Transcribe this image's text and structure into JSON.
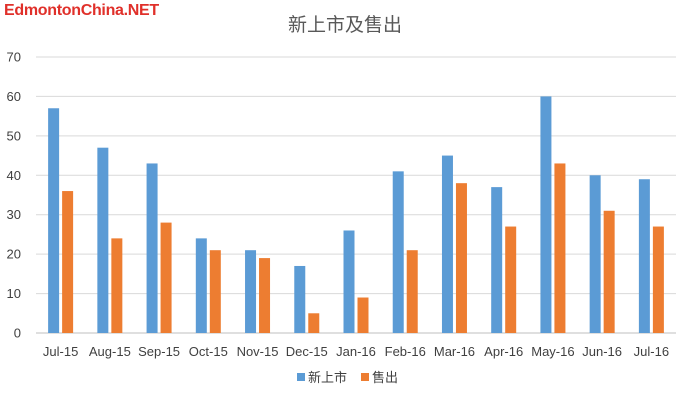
{
  "watermark": "EdmontonChina.NET",
  "chart_data": {
    "type": "bar",
    "title": "新上市及售出",
    "xlabel": "",
    "ylabel": "",
    "categories": [
      "Jul-15",
      "Aug-15",
      "Sep-15",
      "Oct-15",
      "Nov-15",
      "Dec-15",
      "Jan-16",
      "Feb-16",
      "Mar-16",
      "Apr-16",
      "May-16",
      "Jun-16",
      "Jul-16"
    ],
    "series": [
      {
        "name": "新上市",
        "color": "#5b9bd5",
        "values": [
          57,
          47,
          43,
          24,
          21,
          17,
          26,
          41,
          45,
          37,
          60,
          40,
          39
        ]
      },
      {
        "name": "售出",
        "color": "#ed7d31",
        "values": [
          36,
          24,
          28,
          21,
          19,
          5,
          9,
          21,
          38,
          27,
          43,
          31,
          27
        ]
      }
    ],
    "ylim": [
      0,
      70
    ],
    "yticks": [
      0,
      10,
      20,
      30,
      40,
      50,
      60,
      70
    ],
    "grid": true,
    "legend_position": "bottom"
  }
}
